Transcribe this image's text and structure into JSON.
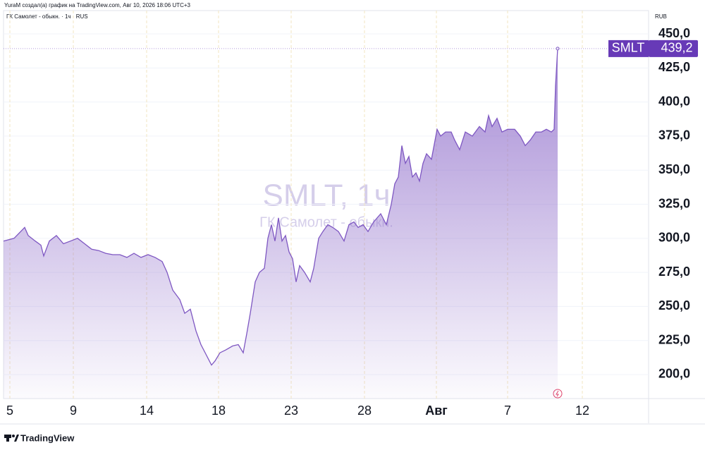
{
  "chart_data": {
    "type": "area",
    "header": "YuraM создал(а) график на TradingView.com, Авг 10, 2026 18:06 UTC+3",
    "legend_title": "ГК Самолет - обыкн. · 1ч · RUS",
    "currency": "RUB",
    "watermark_title": "SMLT, 1ч",
    "watermark_subtitle": "ГК Самолет - обыкн.",
    "brand": "TradingView",
    "symbol": "SMLT",
    "last_price": 439.2,
    "last_price_label": "439,2",
    "color": "#7e57c2",
    "grid": true,
    "xlim": [
      -0.9,
      90.6
    ],
    "xticks": [
      {
        "value": 0,
        "label": "5"
      },
      {
        "value": 9,
        "label": "9"
      },
      {
        "value": 19.4,
        "label": "14"
      },
      {
        "value": 29.6,
        "label": "18"
      },
      {
        "value": 39.9,
        "label": "23"
      },
      {
        "value": 50.3,
        "label": "28"
      },
      {
        "value": 60.5,
        "label": "Авг"
      },
      {
        "value": 70.6,
        "label": "7"
      },
      {
        "value": 81.2,
        "label": "12"
      }
    ],
    "ylim": [
      182.4,
      467.1
    ],
    "yticks": [
      {
        "value": 200,
        "label": "200,0"
      },
      {
        "value": 225,
        "label": "225,0"
      },
      {
        "value": 250,
        "label": "250,0"
      },
      {
        "value": 275,
        "label": "275,0"
      },
      {
        "value": 300,
        "label": "300,0"
      },
      {
        "value": 325,
        "label": "325,0"
      },
      {
        "value": 350,
        "label": "350,0"
      },
      {
        "value": 375,
        "label": "375,0"
      },
      {
        "value": 400,
        "label": "400,0"
      },
      {
        "value": 425,
        "label": "425,0"
      },
      {
        "value": 450,
        "label": "450,0"
      }
    ],
    "x": [
      -0.9,
      0.6,
      2.1,
      2.6,
      3.6,
      4.4,
      4.8,
      5.6,
      6.6,
      7.6,
      8.6,
      9.6,
      10.6,
      11.6,
      12.6,
      13.6,
      14.6,
      15.6,
      16.6,
      17.6,
      18.6,
      19.6,
      20.6,
      21.6,
      22.3,
      23.1,
      24.1,
      24.8,
      25.6,
      26.4,
      27.1,
      27.8,
      28.6,
      29.1,
      29.8,
      30.6,
      31.6,
      32.4,
      33.1,
      33.6,
      34.1,
      34.8,
      35.4,
      36.1,
      36.6,
      37.1,
      37.6,
      38.1,
      38.6,
      39.1,
      39.6,
      40.1,
      40.6,
      41.1,
      41.8,
      42.6,
      43.1,
      43.8,
      44.4,
      45.1,
      45.8,
      46.6,
      47.4,
      48.1,
      48.8,
      49.4,
      50.1,
      50.8,
      51.6,
      52.6,
      53.4,
      54.1,
      54.6,
      55.1,
      55.6,
      56.1,
      56.6,
      57.1,
      57.6,
      58.1,
      58.6,
      59.1,
      59.8,
      60.6,
      61.1,
      61.8,
      62.6,
      63.1,
      63.8,
      64.6,
      65.6,
      66.6,
      67.4,
      67.9,
      68.4,
      69.1,
      69.8,
      70.6,
      71.6,
      72.4,
      73.1,
      73.8,
      74.6,
      75.4,
      76.1,
      76.8,
      77.2,
      77.4,
      77.7
    ],
    "values": [
      298,
      300,
      308,
      302,
      298,
      295,
      287,
      298,
      302,
      296,
      298,
      300,
      296,
      292,
      291,
      289,
      288,
      288,
      286,
      289,
      286,
      288,
      286,
      283,
      275,
      262,
      255,
      245,
      248,
      232,
      222,
      215,
      207,
      210,
      216,
      218,
      221,
      222,
      216,
      230,
      245,
      268,
      275,
      278,
      300,
      310,
      298,
      315,
      298,
      302,
      290,
      285,
      268,
      280,
      275,
      268,
      278,
      300,
      305,
      310,
      308,
      305,
      298,
      310,
      312,
      308,
      310,
      305,
      312,
      318,
      310,
      325,
      340,
      345,
      368,
      355,
      360,
      345,
      348,
      342,
      355,
      362,
      358,
      380,
      375,
      378,
      378,
      372,
      365,
      378,
      375,
      382,
      378,
      390,
      382,
      388,
      378,
      380,
      380,
      375,
      368,
      372,
      378,
      378,
      380,
      378,
      380,
      412,
      439.2
    ]
  }
}
